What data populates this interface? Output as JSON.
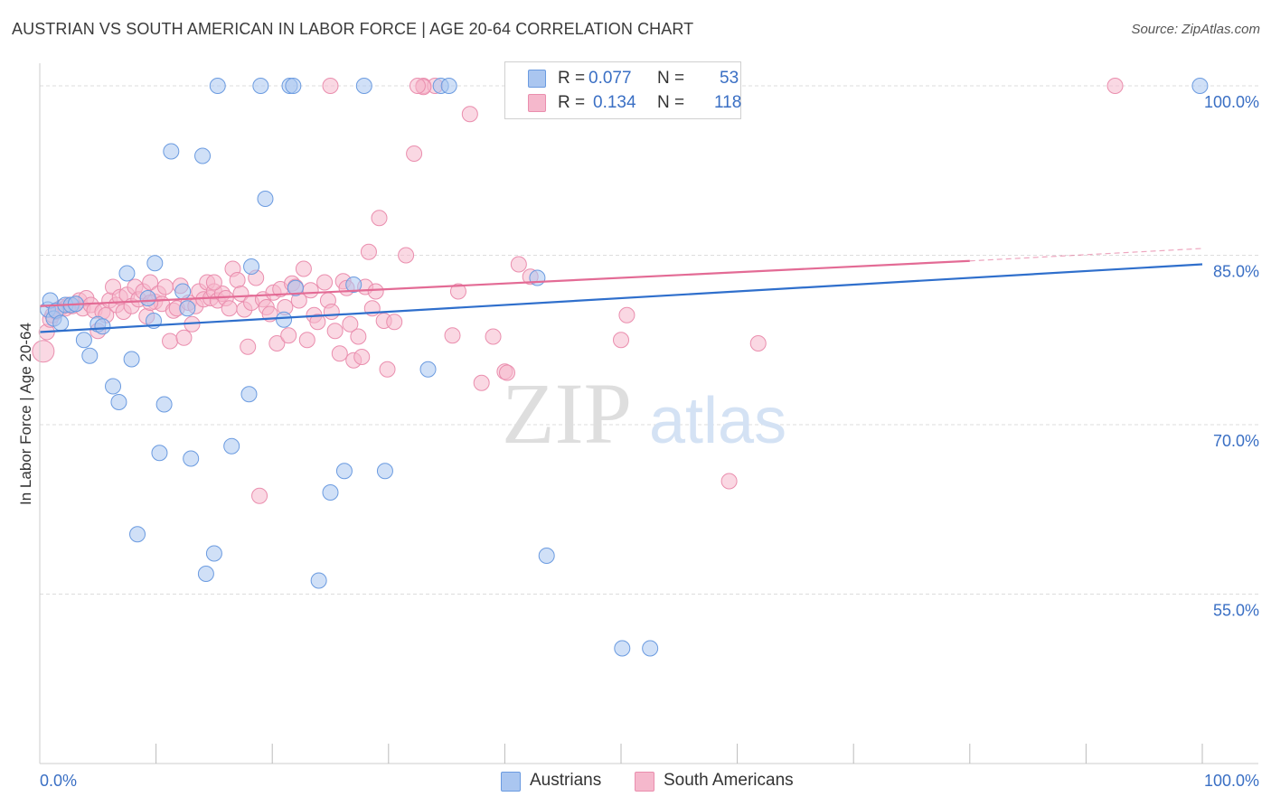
{
  "title": "AUSTRIAN VS SOUTH AMERICAN IN LABOR FORCE | AGE 20-64 CORRELATION CHART",
  "source": "Source: ZipAtlas.com",
  "watermark": {
    "zip": "ZIP",
    "atlas": "atlas"
  },
  "legend": {
    "rows": [
      {
        "r_label": "R =",
        "r_value": "0.077",
        "n_label": "N =",
        "n_value": "53"
      },
      {
        "r_label": "R =",
        "r_value": "0.134",
        "n_label": "N =",
        "n_value": "118"
      }
    ]
  },
  "bottom_legend": [
    "Austrians",
    "South Americans"
  ],
  "chart_data": {
    "type": "scatter",
    "title": "AUSTRIAN VS SOUTH AMERICAN IN LABOR FORCE | AGE 20-64 CORRELATION CHART",
    "xlabel": "",
    "ylabel": "In Labor Force | Age 20-64",
    "xlim": [
      0,
      1
    ],
    "ylim": [
      0.4,
      1.02
    ],
    "x_tick_labels": [
      "0.0%",
      "100.0%"
    ],
    "y_ticks": [
      0.55,
      0.7,
      0.85,
      1.0
    ],
    "y_tick_labels": [
      "55.0%",
      "70.0%",
      "85.0%",
      "100.0%"
    ],
    "colors": {
      "austrians_fill": "#aac6f0",
      "austrians_stroke": "#6b9be0",
      "austrians_line": "#2f6fcc",
      "south_fill": "#f5b8cc",
      "south_stroke": "#ea8eae",
      "south_line": "#e36b95",
      "grid": "#dddddd",
      "axis_label": "#3a6fc4"
    },
    "series": [
      {
        "name": "Austrians",
        "trend": {
          "x0": 0.0,
          "y0": 0.782,
          "x1": 1.0,
          "y1": 0.842
        },
        "points": [
          [
            0.007,
            0.802
          ],
          [
            0.009,
            0.81
          ],
          [
            0.012,
            0.794
          ],
          [
            0.014,
            0.801
          ],
          [
            0.018,
            0.79
          ],
          [
            0.022,
            0.806
          ],
          [
            0.027,
            0.806
          ],
          [
            0.031,
            0.807
          ],
          [
            0.038,
            0.775
          ],
          [
            0.043,
            0.761
          ],
          [
            0.05,
            0.789
          ],
          [
            0.054,
            0.787
          ],
          [
            0.063,
            0.734
          ],
          [
            0.068,
            0.72
          ],
          [
            0.075,
            0.834
          ],
          [
            0.079,
            0.758
          ],
          [
            0.084,
            0.603
          ],
          [
            0.093,
            0.812
          ],
          [
            0.098,
            0.792
          ],
          [
            0.099,
            0.843
          ],
          [
            0.103,
            0.675
          ],
          [
            0.107,
            0.718
          ],
          [
            0.113,
            0.942
          ],
          [
            0.123,
            0.818
          ],
          [
            0.127,
            0.803
          ],
          [
            0.13,
            0.67
          ],
          [
            0.14,
            0.938
          ],
          [
            0.143,
            0.568
          ],
          [
            0.15,
            0.586
          ],
          [
            0.153,
            1.0
          ],
          [
            0.165,
            0.681
          ],
          [
            0.18,
            0.727
          ],
          [
            0.182,
            0.84
          ],
          [
            0.19,
            1.0
          ],
          [
            0.194,
            0.9
          ],
          [
            0.21,
            0.793
          ],
          [
            0.215,
            1.0
          ],
          [
            0.218,
            1.0
          ],
          [
            0.22,
            0.821
          ],
          [
            0.24,
            0.562
          ],
          [
            0.25,
            0.64
          ],
          [
            0.262,
            0.659
          ],
          [
            0.27,
            0.824
          ],
          [
            0.279,
            1.0
          ],
          [
            0.297,
            0.659
          ],
          [
            0.334,
            0.749
          ],
          [
            0.345,
            1.0
          ],
          [
            0.352,
            1.0
          ],
          [
            0.428,
            0.83
          ],
          [
            0.436,
            0.584
          ],
          [
            0.501,
            0.502
          ],
          [
            0.525,
            0.502
          ],
          [
            0.998,
            1.0
          ]
        ]
      },
      {
        "name": "South Americans",
        "trend": {
          "x0": 0.0,
          "y0": 0.805,
          "x1": 0.8,
          "y1": 0.845,
          "x2": 1.0,
          "y2": 0.856
        },
        "points": [
          [
            0.003,
            0.765
          ],
          [
            0.006,
            0.782
          ],
          [
            0.009,
            0.793
          ],
          [
            0.011,
            0.797
          ],
          [
            0.014,
            0.8
          ],
          [
            0.016,
            0.802
          ],
          [
            0.019,
            0.804
          ],
          [
            0.022,
            0.803
          ],
          [
            0.025,
            0.806
          ],
          [
            0.028,
            0.805
          ],
          [
            0.031,
            0.807
          ],
          [
            0.034,
            0.81
          ],
          [
            0.037,
            0.803
          ],
          [
            0.04,
            0.812
          ],
          [
            0.044,
            0.806
          ],
          [
            0.047,
            0.801
          ],
          [
            0.05,
            0.783
          ],
          [
            0.054,
            0.8
          ],
          [
            0.057,
            0.797
          ],
          [
            0.06,
            0.81
          ],
          [
            0.063,
            0.822
          ],
          [
            0.066,
            0.806
          ],
          [
            0.069,
            0.813
          ],
          [
            0.072,
            0.8
          ],
          [
            0.075,
            0.815
          ],
          [
            0.079,
            0.805
          ],
          [
            0.082,
            0.822
          ],
          [
            0.085,
            0.811
          ],
          [
            0.089,
            0.818
          ],
          [
            0.092,
            0.796
          ],
          [
            0.095,
            0.826
          ],
          [
            0.099,
            0.809
          ],
          [
            0.102,
            0.816
          ],
          [
            0.105,
            0.807
          ],
          [
            0.108,
            0.822
          ],
          [
            0.112,
            0.774
          ],
          [
            0.115,
            0.801
          ],
          [
            0.118,
            0.803
          ],
          [
            0.121,
            0.823
          ],
          [
            0.124,
            0.777
          ],
          [
            0.128,
            0.808
          ],
          [
            0.131,
            0.789
          ],
          [
            0.134,
            0.805
          ],
          [
            0.137,
            0.818
          ],
          [
            0.141,
            0.811
          ],
          [
            0.144,
            0.826
          ],
          [
            0.147,
            0.812
          ],
          [
            0.15,
            0.818
          ],
          [
            0.153,
            0.81
          ],
          [
            0.157,
            0.816
          ],
          [
            0.16,
            0.812
          ],
          [
            0.163,
            0.803
          ],
          [
            0.166,
            0.838
          ],
          [
            0.17,
            0.828
          ],
          [
            0.173,
            0.816
          ],
          [
            0.176,
            0.802
          ],
          [
            0.179,
            0.769
          ],
          [
            0.182,
            0.808
          ],
          [
            0.186,
            0.83
          ],
          [
            0.189,
            0.637
          ],
          [
            0.192,
            0.811
          ],
          [
            0.195,
            0.804
          ],
          [
            0.198,
            0.798
          ],
          [
            0.201,
            0.817
          ],
          [
            0.204,
            0.772
          ],
          [
            0.207,
            0.82
          ],
          [
            0.211,
            0.804
          ],
          [
            0.214,
            0.779
          ],
          [
            0.217,
            0.825
          ],
          [
            0.22,
            0.822
          ],
          [
            0.223,
            0.81
          ],
          [
            0.227,
            0.838
          ],
          [
            0.23,
            0.775
          ],
          [
            0.233,
            0.819
          ],
          [
            0.236,
            0.797
          ],
          [
            0.239,
            0.791
          ],
          [
            0.245,
            0.826
          ],
          [
            0.248,
            0.81
          ],
          [
            0.251,
            0.8
          ],
          [
            0.254,
            0.783
          ],
          [
            0.258,
            0.763
          ],
          [
            0.261,
            0.827
          ],
          [
            0.264,
            0.821
          ],
          [
            0.267,
            0.789
          ],
          [
            0.27,
            0.757
          ],
          [
            0.274,
            0.778
          ],
          [
            0.277,
            0.76
          ],
          [
            0.28,
            0.822
          ],
          [
            0.283,
            0.853
          ],
          [
            0.286,
            0.803
          ],
          [
            0.289,
            0.818
          ],
          [
            0.292,
            0.883
          ],
          [
            0.296,
            0.792
          ],
          [
            0.299,
            0.749
          ],
          [
            0.305,
            0.791
          ],
          [
            0.315,
            0.85
          ],
          [
            0.322,
            0.94
          ],
          [
            0.33,
            1.0
          ],
          [
            0.34,
            1.0
          ],
          [
            0.355,
            0.779
          ],
          [
            0.36,
            0.818
          ],
          [
            0.37,
            0.975
          ],
          [
            0.38,
            0.737
          ],
          [
            0.39,
            0.778
          ],
          [
            0.4,
            0.747
          ],
          [
            0.402,
            0.746
          ],
          [
            0.412,
            0.842
          ],
          [
            0.422,
            0.831
          ],
          [
            0.25,
            1.0
          ],
          [
            0.33,
            0.999
          ],
          [
            0.5,
            0.775
          ],
          [
            0.505,
            0.797
          ],
          [
            0.593,
            0.65
          ],
          [
            0.618,
            0.772
          ],
          [
            0.925,
            1.0
          ],
          [
            0.095,
            0.808
          ],
          [
            0.15,
            0.826
          ],
          [
            0.325,
            1.0
          ]
        ]
      }
    ]
  }
}
